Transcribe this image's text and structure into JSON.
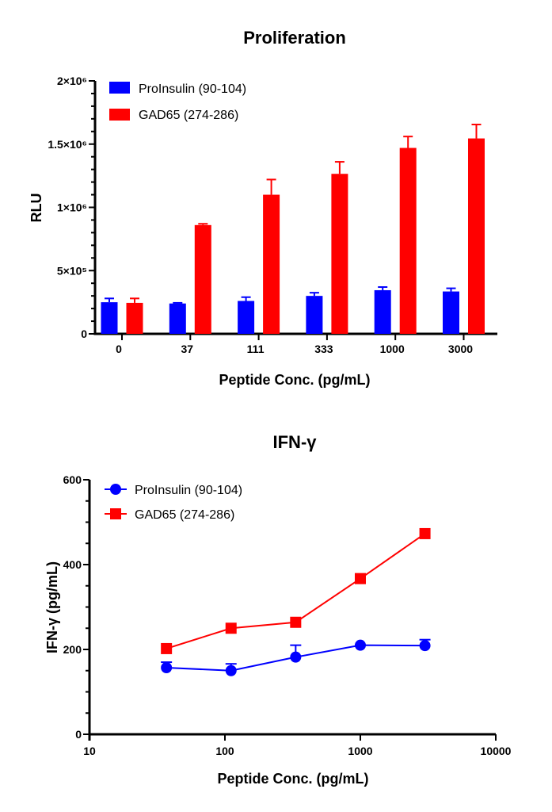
{
  "chart_data": [
    {
      "type": "bar",
      "title": "Proliferation",
      "xlabel": "Peptide Conc. (pg/mL)",
      "ylabel": "RLU",
      "categories": [
        "0",
        "37",
        "111",
        "333",
        "1000",
        "3000"
      ],
      "ylim": [
        0,
        2000000
      ],
      "yticks": [
        0,
        500000,
        1000000,
        1500000,
        2000000
      ],
      "ytick_labels": [
        "0",
        "5×10⁵",
        "1×10⁶",
        "1.5×10⁶",
        "2×10⁶"
      ],
      "legend": "top-left",
      "series": [
        {
          "name": "ProInsulin (90-104)",
          "color": "#0000ff",
          "values": [
            250000,
            240000,
            260000,
            300000,
            345000,
            335000
          ],
          "error_upper": [
            280000,
            245000,
            290000,
            325000,
            370000,
            360000
          ]
        },
        {
          "name": "GAD65 (274-286)",
          "color": "#ff0000",
          "values": [
            245000,
            860000,
            1100000,
            1265000,
            1470000,
            1545000
          ],
          "error_upper": [
            280000,
            870000,
            1220000,
            1360000,
            1560000,
            1655000
          ]
        }
      ]
    },
    {
      "type": "line",
      "title": "IFN-γ",
      "xlabel": "Peptide Conc. (pg/mL)",
      "ylabel": "IFN-γ (pg/mL)",
      "xscale": "log",
      "xlim": [
        10,
        10000
      ],
      "xticks": [
        "10",
        "100",
        "1000",
        "10000"
      ],
      "ylim": [
        0,
        600
      ],
      "yticks": [
        "0",
        "200",
        "400",
        "600"
      ],
      "legend": "top-left",
      "x": [
        37,
        111,
        333,
        1000,
        3000
      ],
      "series": [
        {
          "name": "ProInsulin (90-104)",
          "color": "#0000ff",
          "marker": "circle",
          "values": [
            157,
            150,
            182,
            210,
            209
          ],
          "error_upper": [
            170,
            166,
            210,
            212,
            223
          ]
        },
        {
          "name": "GAD65 (274-286)",
          "color": "#ff0000",
          "marker": "square",
          "values": [
            202,
            250,
            264,
            367,
            473
          ],
          "error_upper": [
            204,
            252,
            266,
            369,
            475
          ]
        }
      ]
    }
  ]
}
